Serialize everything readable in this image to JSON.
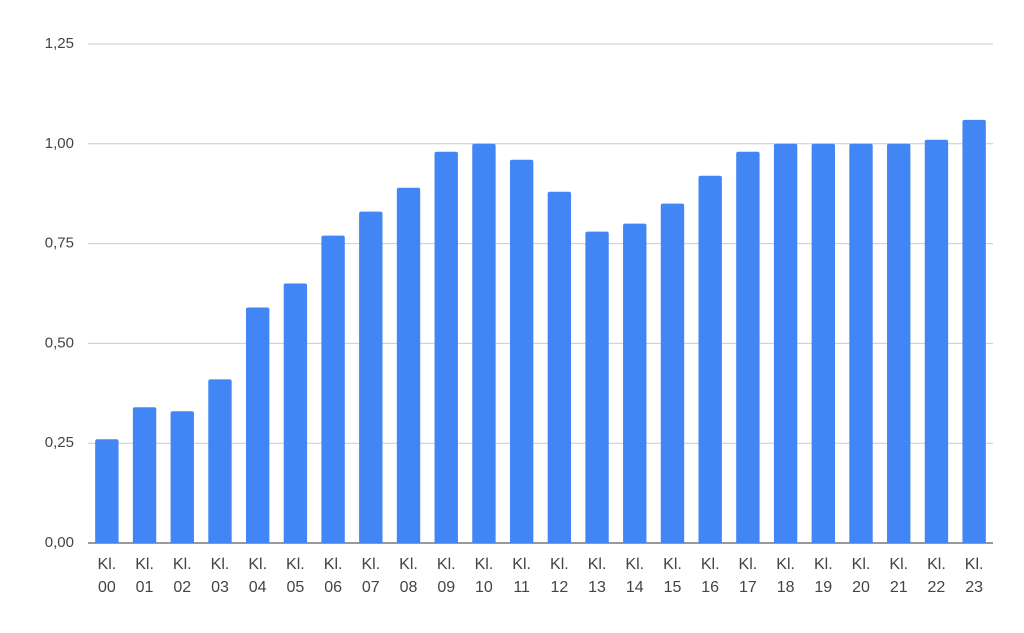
{
  "chart_data": {
    "type": "bar",
    "categories": [
      "Kl. 00",
      "Kl. 01",
      "Kl. 02",
      "Kl. 03",
      "Kl. 04",
      "Kl. 05",
      "Kl. 06",
      "Kl. 07",
      "Kl. 08",
      "Kl. 09",
      "Kl. 10",
      "Kl. 11",
      "Kl. 12",
      "Kl. 13",
      "Kl. 14",
      "Kl. 15",
      "Kl. 16",
      "Kl. 17",
      "Kl. 18",
      "Kl. 19",
      "Kl. 20",
      "Kl. 21",
      "Kl. 22",
      "Kl. 23"
    ],
    "values": [
      0.26,
      0.34,
      0.33,
      0.41,
      0.59,
      0.65,
      0.77,
      0.83,
      0.89,
      0.98,
      1.0,
      0.96,
      0.88,
      0.78,
      0.8,
      0.85,
      0.92,
      0.98,
      1.0,
      1.0,
      1.0,
      1.0,
      1.01,
      1.06
    ],
    "color": "#4285f4",
    "ylim": [
      0,
      1.25
    ],
    "yticks": [
      {
        "value": 0,
        "label": "0,00"
      },
      {
        "value": 0.25,
        "label": "0,25"
      },
      {
        "value": 0.5,
        "label": "0,50"
      },
      {
        "value": 0.75,
        "label": "0,75"
      },
      {
        "value": 1,
        "label": "1,00"
      },
      {
        "value": 1.25,
        "label": "1,25"
      }
    ],
    "grid": true
  }
}
